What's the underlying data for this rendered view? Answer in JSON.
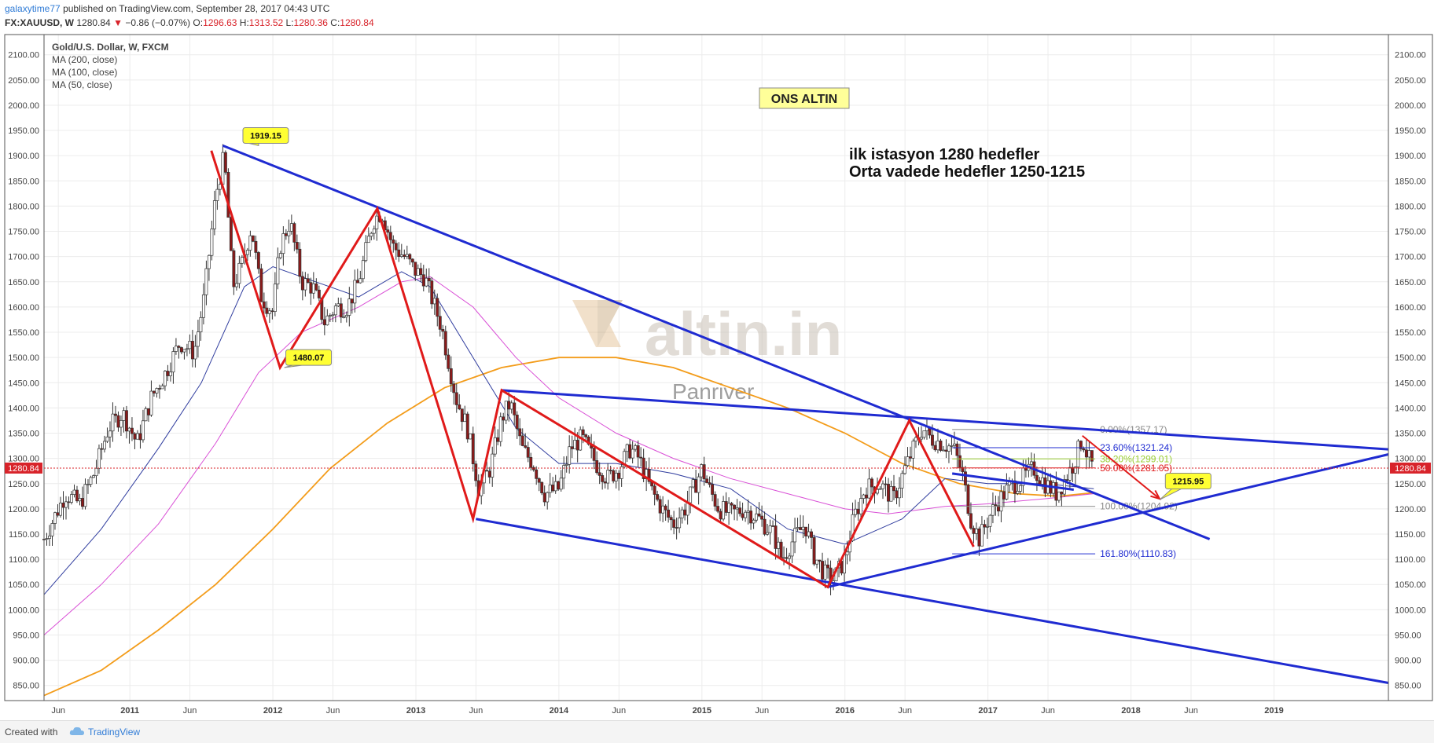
{
  "header": {
    "author": "galaxytime77",
    "published": "published on TradingView.com, September 28, 2017 04:43 UTC",
    "symbol": "FX:XAUUSD, W",
    "last": "1280.84",
    "change": "−0.86 (−0.07%)",
    "ohlc": {
      "o_label": "O:",
      "o": "1296.63",
      "h_label": "H:",
      "h": "1313.52",
      "l_label": "L:",
      "l": "1280.36",
      "c_label": "C:",
      "c": "1280.84"
    }
  },
  "legend": {
    "title": "Gold/U.S. Dollar, W, FXCM",
    "items": [
      "MA (200, close)",
      "MA (100, close)",
      "MA (50, close)"
    ]
  },
  "annotations": {
    "ons_altin": "ONS ALTIN",
    "text_line1": "ilk istasyon 1280 hedefler",
    "text_line2": "Orta vadede hedefler 1250-1215",
    "watermark_logo": "altin.in",
    "watermark_sub": "Panriver"
  },
  "footer": {
    "created": "Created with",
    "brand": "TradingView"
  },
  "colors": {
    "candle_up": "#ffffff",
    "candle_down": "#8b1a1a",
    "candle_wick": "#333333",
    "trend_blue": "#1f2bd1",
    "zigzag_red": "#e01a1a",
    "ma200": "#f39c1a",
    "ma100": "#d94fd6",
    "ma50": "#2f3c9e",
    "price_line": "#d8232a",
    "callout_bg": "#ffff33"
  },
  "chart_data": {
    "type": "candlestick",
    "xdomain": [
      2010.4,
      2019.8
    ],
    "ydomain": [
      820,
      2140
    ],
    "y_ticks": [
      850,
      900,
      950,
      1000,
      1050,
      1100,
      1150,
      1200,
      1250,
      1300,
      1350,
      1400,
      1450,
      1500,
      1550,
      1600,
      1650,
      1700,
      1750,
      1800,
      1850,
      1900,
      1950,
      2000,
      2050,
      2100
    ],
    "x_ticks": [
      {
        "t": 2010.5,
        "label": "Jun",
        "major": false
      },
      {
        "t": 2011.0,
        "label": "2011",
        "major": true
      },
      {
        "t": 2011.42,
        "label": "Jun",
        "major": false
      },
      {
        "t": 2012.0,
        "label": "2012",
        "major": true
      },
      {
        "t": 2012.42,
        "label": "Jun",
        "major": false
      },
      {
        "t": 2013.0,
        "label": "2013",
        "major": true
      },
      {
        "t": 2013.42,
        "label": "Jun",
        "major": false
      },
      {
        "t": 2014.0,
        "label": "2014",
        "major": true
      },
      {
        "t": 2014.42,
        "label": "Jun",
        "major": false
      },
      {
        "t": 2015.0,
        "label": "2015",
        "major": true
      },
      {
        "t": 2015.42,
        "label": "Jun",
        "major": false
      },
      {
        "t": 2016.0,
        "label": "2016",
        "major": true
      },
      {
        "t": 2016.42,
        "label": "Jun",
        "major": false
      },
      {
        "t": 2017.0,
        "label": "2017",
        "major": true
      },
      {
        "t": 2017.42,
        "label": "Jun",
        "major": false
      },
      {
        "t": 2018.0,
        "label": "2018",
        "major": true
      },
      {
        "t": 2018.42,
        "label": "Jun",
        "major": false
      },
      {
        "t": 2019.0,
        "label": "2019",
        "major": true
      }
    ],
    "last_price": 1280.84,
    "last_price_label": "1280.84",
    "price_path": [
      [
        2010.4,
        1140
      ],
      [
        2010.55,
        1230
      ],
      [
        2010.65,
        1210
      ],
      [
        2010.75,
        1270
      ],
      [
        2010.85,
        1360
      ],
      [
        2010.95,
        1390
      ],
      [
        2011.05,
        1330
      ],
      [
        2011.15,
        1420
      ],
      [
        2011.25,
        1470
      ],
      [
        2011.35,
        1530
      ],
      [
        2011.45,
        1510
      ],
      [
        2011.52,
        1620
      ],
      [
        2011.6,
        1820
      ],
      [
        2011.66,
        1900
      ],
      [
        2011.72,
        1640
      ],
      [
        2011.78,
        1680
      ],
      [
        2011.85,
        1760
      ],
      [
        2011.92,
        1620
      ],
      [
        2012.0,
        1590
      ],
      [
        2012.05,
        1720
      ],
      [
        2012.12,
        1770
      ],
      [
        2012.2,
        1650
      ],
      [
        2012.28,
        1640
      ],
      [
        2012.36,
        1570
      ],
      [
        2012.44,
        1600
      ],
      [
        2012.52,
        1600
      ],
      [
        2012.6,
        1650
      ],
      [
        2012.7,
        1770
      ],
      [
        2012.76,
        1790
      ],
      [
        2012.84,
        1720
      ],
      [
        2012.92,
        1700
      ],
      [
        2013.0,
        1670
      ],
      [
        2013.06,
        1660
      ],
      [
        2013.12,
        1610
      ],
      [
        2013.18,
        1560
      ],
      [
        2013.28,
        1420
      ],
      [
        2013.36,
        1360
      ],
      [
        2013.44,
        1240
      ],
      [
        2013.52,
        1280
      ],
      [
        2013.6,
        1380
      ],
      [
        2013.66,
        1410
      ],
      [
        2013.74,
        1320
      ],
      [
        2013.82,
        1290
      ],
      [
        2013.9,
        1230
      ],
      [
        2014.0,
        1240
      ],
      [
        2014.08,
        1320
      ],
      [
        2014.16,
        1340
      ],
      [
        2014.26,
        1290
      ],
      [
        2014.34,
        1260
      ],
      [
        2014.42,
        1280
      ],
      [
        2014.5,
        1320
      ],
      [
        2014.56,
        1300
      ],
      [
        2014.64,
        1240
      ],
      [
        2014.72,
        1200
      ],
      [
        2014.8,
        1170
      ],
      [
        2014.88,
        1200
      ],
      [
        2015.0,
        1280
      ],
      [
        2015.05,
        1240
      ],
      [
        2015.12,
        1200
      ],
      [
        2015.2,
        1190
      ],
      [
        2015.3,
        1200
      ],
      [
        2015.4,
        1180
      ],
      [
        2015.5,
        1150
      ],
      [
        2015.56,
        1100
      ],
      [
        2015.64,
        1140
      ],
      [
        2015.72,
        1170
      ],
      [
        2015.78,
        1110
      ],
      [
        2015.86,
        1070
      ],
      [
        2015.92,
        1060
      ],
      [
        2016.0,
        1100
      ],
      [
        2016.06,
        1180
      ],
      [
        2016.14,
        1240
      ],
      [
        2016.24,
        1250
      ],
      [
        2016.34,
        1220
      ],
      [
        2016.42,
        1280
      ],
      [
        2016.48,
        1320
      ],
      [
        2016.54,
        1360
      ],
      [
        2016.6,
        1340
      ],
      [
        2016.68,
        1330
      ],
      [
        2016.76,
        1320
      ],
      [
        2016.82,
        1270
      ],
      [
        2016.88,
        1180
      ],
      [
        2016.94,
        1140
      ],
      [
        2017.0,
        1180
      ],
      [
        2017.06,
        1210
      ],
      [
        2017.14,
        1240
      ],
      [
        2017.24,
        1260
      ],
      [
        2017.32,
        1280
      ],
      [
        2017.4,
        1250
      ],
      [
        2017.48,
        1230
      ],
      [
        2017.54,
        1260
      ],
      [
        2017.6,
        1290
      ],
      [
        2017.66,
        1340
      ],
      [
        2017.7,
        1300
      ],
      [
        2017.74,
        1280
      ]
    ],
    "ma200": [
      [
        2010.4,
        830
      ],
      [
        2010.8,
        880
      ],
      [
        2011.2,
        960
      ],
      [
        2011.6,
        1050
      ],
      [
        2012.0,
        1160
      ],
      [
        2012.4,
        1280
      ],
      [
        2012.8,
        1370
      ],
      [
        2013.2,
        1440
      ],
      [
        2013.6,
        1480
      ],
      [
        2014.0,
        1500
      ],
      [
        2014.4,
        1500
      ],
      [
        2014.8,
        1480
      ],
      [
        2015.2,
        1440
      ],
      [
        2015.6,
        1400
      ],
      [
        2016.0,
        1350
      ],
      [
        2016.4,
        1290
      ],
      [
        2016.8,
        1250
      ],
      [
        2017.2,
        1230
      ],
      [
        2017.5,
        1225
      ],
      [
        2017.74,
        1232
      ]
    ],
    "ma100": [
      [
        2010.4,
        950
      ],
      [
        2010.8,
        1050
      ],
      [
        2011.2,
        1170
      ],
      [
        2011.6,
        1330
      ],
      [
        2011.9,
        1470
      ],
      [
        2012.2,
        1550
      ],
      [
        2012.6,
        1600
      ],
      [
        2012.9,
        1650
      ],
      [
        2013.1,
        1660
      ],
      [
        2013.4,
        1600
      ],
      [
        2013.7,
        1500
      ],
      [
        2014.0,
        1420
      ],
      [
        2014.4,
        1350
      ],
      [
        2014.8,
        1300
      ],
      [
        2015.2,
        1260
      ],
      [
        2015.6,
        1230
      ],
      [
        2016.0,
        1200
      ],
      [
        2016.3,
        1190
      ],
      [
        2016.7,
        1205
      ],
      [
        2017.0,
        1210
      ],
      [
        2017.4,
        1220
      ],
      [
        2017.74,
        1230
      ]
    ],
    "ma50": [
      [
        2010.4,
        1030
      ],
      [
        2010.8,
        1160
      ],
      [
        2011.2,
        1320
      ],
      [
        2011.5,
        1450
      ],
      [
        2011.8,
        1640
      ],
      [
        2012.0,
        1680
      ],
      [
        2012.3,
        1650
      ],
      [
        2012.6,
        1620
      ],
      [
        2012.9,
        1670
      ],
      [
        2013.1,
        1640
      ],
      [
        2013.4,
        1500
      ],
      [
        2013.7,
        1360
      ],
      [
        2014.0,
        1290
      ],
      [
        2014.4,
        1290
      ],
      [
        2014.8,
        1270
      ],
      [
        2015.2,
        1240
      ],
      [
        2015.6,
        1160
      ],
      [
        2016.0,
        1130
      ],
      [
        2016.4,
        1180
      ],
      [
        2016.7,
        1260
      ],
      [
        2017.0,
        1250
      ],
      [
        2017.4,
        1250
      ],
      [
        2017.74,
        1240
      ]
    ],
    "trendlines_blue": [
      [
        [
          2011.65,
          1920
        ],
        [
          2018.55,
          1140
        ]
      ],
      [
        [
          2013.42,
          1180
        ],
        [
          2019.8,
          855
        ]
      ],
      [
        [
          2013.6,
          1435
        ],
        [
          2019.8,
          1318
        ]
      ],
      [
        [
          2015.88,
          1045
        ],
        [
          2019.8,
          1308
        ]
      ],
      [
        [
          2016.75,
          1270
        ],
        [
          2017.6,
          1238
        ]
      ]
    ],
    "zigzag_red": [
      [
        2011.57,
        1910
      ],
      [
        2012.05,
        1480
      ],
      [
        2012.73,
        1795
      ],
      [
        2013.4,
        1180
      ],
      [
        2013.6,
        1435
      ],
      [
        2015.88,
        1045
      ],
      [
        2016.45,
        1375
      ],
      [
        2016.9,
        1125
      ]
    ],
    "red_arrow": [
      [
        2017.66,
        1345
      ],
      [
        2018.2,
        1220
      ]
    ],
    "fib_levels": [
      {
        "value": 1357.17,
        "label": "0.00%(1357.17)",
        "color": "#888888"
      },
      {
        "value": 1321.24,
        "label": "23.60%(1321.24)",
        "color": "#1f2bd1"
      },
      {
        "value": 1299.01,
        "label": "38.20%(1299.01)",
        "color": "#9acd32"
      },
      {
        "value": 1281.05,
        "label": "50.00%(1281.05)",
        "color": "#e01a1a"
      },
      {
        "value": 1204.92,
        "label": "100.00%(1204.92)",
        "color": "#888888"
      },
      {
        "value": 1110.83,
        "label": "161.80%(1110.83)",
        "color": "#1f2bd1"
      }
    ],
    "fib_x": [
      2016.75,
      2017.75
    ],
    "callouts": [
      {
        "label": "1919.15",
        "t": 2011.95,
        "v": 1940,
        "pt": [
          2011.9,
          1920
        ]
      },
      {
        "label": "1480.07",
        "t": 2012.25,
        "v": 1500,
        "pt": [
          2012.08,
          1480
        ]
      },
      {
        "label": "1215.95",
        "t": 2018.4,
        "v": 1255,
        "pt": [
          2018.2,
          1218
        ]
      }
    ]
  }
}
